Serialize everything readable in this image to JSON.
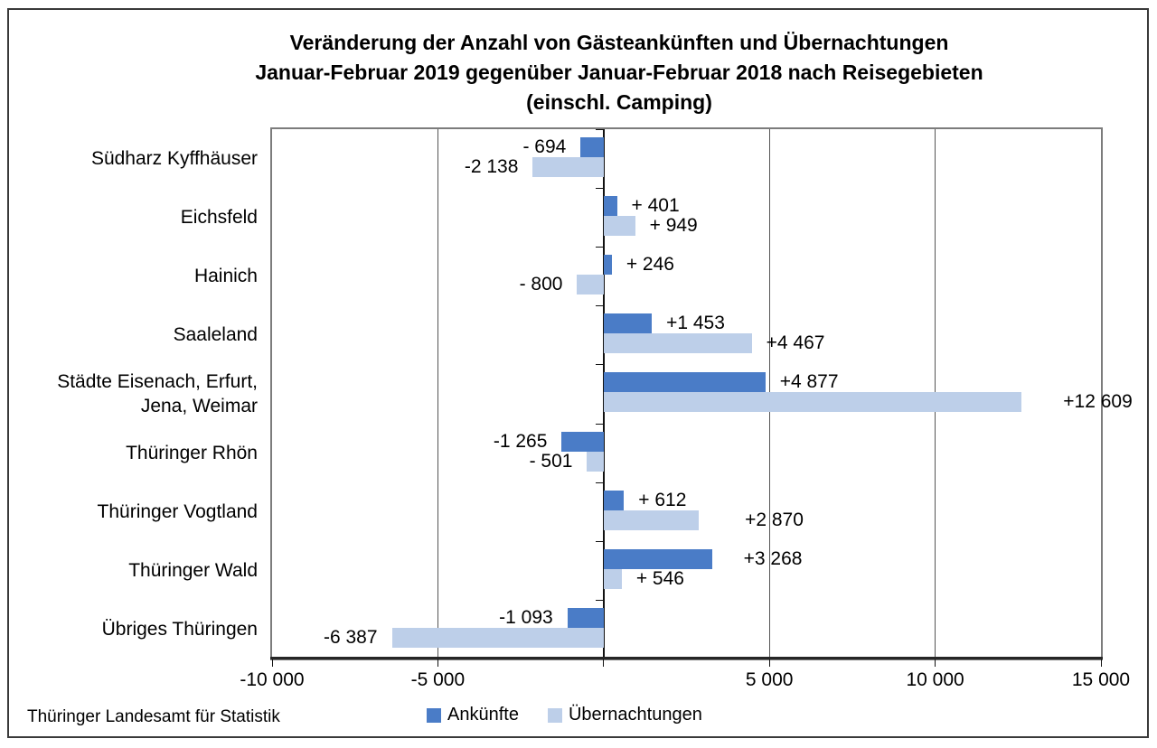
{
  "title": {
    "line1": "Veränderung der Anzahl von Gästeankünften und Übernachtungen",
    "line2": "Januar-Februar 2019 gegenüber Januar-Februar 2018 nach Reisegebieten",
    "line3": "(einschl. Camping)"
  },
  "source": "Thüringer Landesamt für Statistik",
  "chart_data": {
    "type": "bar",
    "orientation": "horizontal",
    "title": "Veränderung der Anzahl von Gästeankünften und Übernachtungen Januar-Februar 2019 gegenüber Januar-Februar 2018 nach Reisegebieten (einschl. Camping)",
    "categories": [
      "Südharz Kyffhäuser",
      "Eichsfeld",
      "Hainich",
      "Saaleland",
      "Städte Eisenach, Erfurt,\nJena, Weimar",
      "Thüringer Rhön",
      "Thüringer Vogtland",
      "Thüringer Wald",
      "Übriges Thüringen"
    ],
    "series": [
      {
        "name": "Ankünfte",
        "color": "#4a7cc7",
        "values": [
          -694,
          401,
          246,
          1453,
          4877,
          -1265,
          612,
          3268,
          -1093
        ],
        "labels": [
          "- 694",
          "+ 401",
          "+ 246",
          "+1 453",
          "+4 877",
          "-1 265",
          "+ 612",
          "+3 268",
          "-1 093"
        ]
      },
      {
        "name": "Übernachtungen",
        "color": "#bdcfe9",
        "values": [
          -2138,
          949,
          -800,
          4467,
          12609,
          -501,
          2870,
          546,
          -6387
        ],
        "labels": [
          "-2 138",
          "+ 949",
          "- 800",
          "+4 467",
          "+12 609",
          "- 501",
          "+2 870",
          "+ 546",
          "-6 387"
        ]
      }
    ],
    "xlim": [
      -10000,
      15000
    ],
    "x_ticks": [
      {
        "value": -10000,
        "label": "-10 000"
      },
      {
        "value": -5000,
        "label": "-5 000"
      },
      {
        "value": 5000,
        "label": "5 000"
      },
      {
        "value": 10000,
        "label": "10 000"
      },
      {
        "value": 15000,
        "label": "15 000"
      }
    ],
    "axis_tick_values": [
      -10000,
      -5000,
      0,
      5000,
      10000,
      15000
    ],
    "grid_values": [
      -5000,
      5000,
      10000
    ],
    "legend_position": "bottom",
    "source": "Thüringer Landesamt für Statistik"
  }
}
